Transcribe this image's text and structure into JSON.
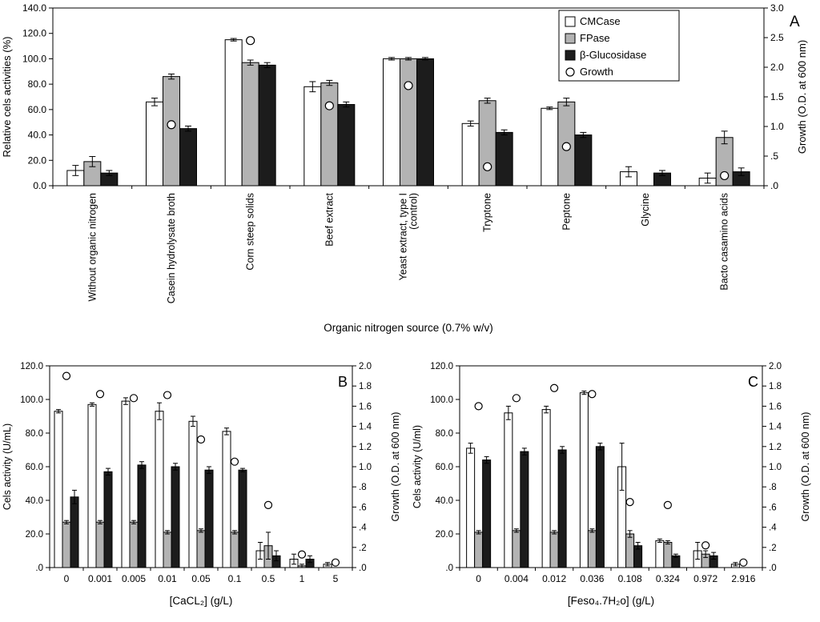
{
  "figure": {
    "background": "#ffffff"
  },
  "colors": {
    "cmcase": "#ffffff",
    "fpase": "#b3b3b3",
    "bglucosidase": "#1c1c1c",
    "stroke": "#000000"
  },
  "chart_data": [
    {
      "panel_label": "A",
      "type": "bar",
      "x_axis": {
        "label": "Organic nitrogen source (0.7% w/v)",
        "rotated_tick_labels": true
      },
      "left_axis": {
        "label": "Relative cels activities (%)",
        "min": 0,
        "max": 140,
        "ticks": [
          {
            "v": 140,
            "label": "140.0"
          },
          {
            "v": 120,
            "label": "120.0"
          },
          {
            "v": 100,
            "label": "100.0"
          },
          {
            "v": 80,
            "label": "80.0"
          },
          {
            "v": 60,
            "label": "60.0"
          },
          {
            "v": 40,
            "label": "40.0"
          },
          {
            "v": 20,
            "label": "20.0"
          },
          {
            "v": 0,
            "label": "0.0"
          }
        ]
      },
      "right_axis": {
        "label": "Growth (O.D. at 600 nm)",
        "min": 0,
        "max": 3,
        "ticks": [
          {
            "v": 3,
            "label": "3.0"
          },
          {
            "v": 2.5,
            "label": "2.5"
          },
          {
            "v": 2,
            "label": "2.0"
          },
          {
            "v": 1.5,
            "label": "1.5"
          },
          {
            "v": 1,
            "label": "1.0"
          },
          {
            "v": 0.5,
            "label": ".5"
          },
          {
            "v": 0,
            "label": ".0"
          }
        ]
      },
      "categories": [
        "Without organic nitrogen",
        "Casein hydrolysate broth",
        "Corn steep solids",
        "Beef extract",
        "Yeast extract, type I\n(control)",
        "Tryptone",
        "Peptone",
        "Glycine",
        "Bacto casamino acids"
      ],
      "series": [
        {
          "name": "CMCase",
          "color": "#ffffff",
          "values": [
            12,
            66,
            115,
            78,
            100,
            49,
            61,
            11,
            6
          ],
          "errors": [
            4,
            3,
            1,
            4,
            1,
            2,
            1,
            4,
            4
          ]
        },
        {
          "name": "FPase",
          "color": "#b3b3b3",
          "values": [
            19,
            86,
            97,
            81,
            100,
            67,
            66,
            0,
            38
          ],
          "errors": [
            4,
            2,
            2,
            2,
            1,
            2,
            3,
            0,
            5
          ]
        },
        {
          "name": "β-Glucosidase",
          "color": "#1c1c1c",
          "values": [
            10,
            45,
            95,
            64,
            100,
            42,
            40,
            10,
            11
          ],
          "errors": [
            2,
            2,
            2,
            2,
            1,
            2,
            2,
            2,
            3
          ]
        }
      ],
      "growth_series": {
        "name": "Growth",
        "marker": "open-circle",
        "values": [
          null,
          1.03,
          2.45,
          1.35,
          1.69,
          0.32,
          0.66,
          null,
          0.17
        ]
      },
      "legend": {
        "position": "top-right",
        "entries": [
          {
            "label": "CMCase",
            "swatch": "square",
            "color": "#ffffff"
          },
          {
            "label": "FPase",
            "swatch": "square",
            "color": "#b3b3b3"
          },
          {
            "label": "β-Glucosidase",
            "swatch": "square",
            "color": "#1c1c1c"
          },
          {
            "label": "Growth",
            "swatch": "circle",
            "color": "#ffffff"
          }
        ]
      }
    },
    {
      "panel_label": "B",
      "type": "bar",
      "x_axis": {
        "label": "[CaCL₂] (g/L)",
        "rotated_tick_labels": false
      },
      "left_axis": {
        "label": "Cels activity (U/mL)",
        "min": 0,
        "max": 120,
        "ticks": [
          {
            "v": 120,
            "label": "120.0"
          },
          {
            "v": 100,
            "label": "100.0"
          },
          {
            "v": 80,
            "label": "80.0"
          },
          {
            "v": 60,
            "label": "60.0"
          },
          {
            "v": 40,
            "label": "40.0"
          },
          {
            "v": 20,
            "label": "20.0"
          },
          {
            "v": 0,
            "label": ".0"
          }
        ]
      },
      "right_axis": {
        "label": "Growth (O.D. at 600 nm)",
        "min": 0,
        "max": 2,
        "ticks": [
          {
            "v": 2,
            "label": "2.0"
          },
          {
            "v": 1.8,
            "label": "1.8"
          },
          {
            "v": 1.6,
            "label": "1.6"
          },
          {
            "v": 1.4,
            "label": "1.4"
          },
          {
            "v": 1.2,
            "label": "1.2"
          },
          {
            "v": 1,
            "label": "1.0"
          },
          {
            "v": 0.8,
            "label": ".8"
          },
          {
            "v": 0.6,
            "label": ".6"
          },
          {
            "v": 0.4,
            "label": ".4"
          },
          {
            "v": 0.2,
            "label": ".2"
          },
          {
            "v": 0,
            "label": ".0"
          }
        ]
      },
      "categories": [
        "0",
        "0.001",
        "0.005",
        "0.01",
        "0.05",
        "0.1",
        "0.5",
        "1",
        "5"
      ],
      "series": [
        {
          "name": "CMCase",
          "color": "#ffffff",
          "values": [
            93,
            97,
            99,
            93,
            87,
            81,
            10,
            5,
            2
          ],
          "errors": [
            1,
            1,
            2,
            5,
            3,
            2,
            5,
            3,
            1
          ]
        },
        {
          "name": "FPase",
          "color": "#b3b3b3",
          "values": [
            27,
            27,
            27,
            21,
            22,
            21,
            13,
            1,
            0
          ],
          "errors": [
            1,
            1,
            1,
            1,
            1,
            1,
            8,
            1,
            0
          ]
        },
        {
          "name": "β-Glucosidase",
          "color": "#1c1c1c",
          "values": [
            42,
            57,
            61,
            60,
            58,
            58,
            7,
            5,
            0
          ],
          "errors": [
            4,
            2,
            2,
            2,
            2,
            1,
            3,
            2,
            0
          ]
        }
      ],
      "growth_series": {
        "name": "Growth",
        "marker": "open-circle",
        "values": [
          1.9,
          1.72,
          1.68,
          1.71,
          1.27,
          1.05,
          0.62,
          0.13,
          0.05
        ]
      }
    },
    {
      "panel_label": "C",
      "type": "bar",
      "x_axis": {
        "label": "[Feso₄.7H₂o] (g/L)",
        "rotated_tick_labels": false
      },
      "left_axis": {
        "label": "Cels activity (U/ml)",
        "min": 0,
        "max": 120,
        "ticks": [
          {
            "v": 120,
            "label": "120.0"
          },
          {
            "v": 100,
            "label": "100.0"
          },
          {
            "v": 80,
            "label": "80.0"
          },
          {
            "v": 60,
            "label": "60.0"
          },
          {
            "v": 40,
            "label": "40.0"
          },
          {
            "v": 20,
            "label": "20.0"
          },
          {
            "v": 0,
            "label": ".0"
          }
        ]
      },
      "right_axis": {
        "label": "Growth (O.D. at 600 nm)",
        "min": 0,
        "max": 2,
        "ticks": [
          {
            "v": 2,
            "label": "2.0"
          },
          {
            "v": 1.8,
            "label": "1.8"
          },
          {
            "v": 1.6,
            "label": "1.6"
          },
          {
            "v": 1.4,
            "label": "1.4"
          },
          {
            "v": 1.2,
            "label": "1.2"
          },
          {
            "v": 1,
            "label": "1.0"
          },
          {
            "v": 0.8,
            "label": ".8"
          },
          {
            "v": 0.6,
            "label": ".6"
          },
          {
            "v": 0.4,
            "label": ".4"
          },
          {
            "v": 0.2,
            "label": ".2"
          },
          {
            "v": 0,
            "label": ".0"
          }
        ]
      },
      "categories": [
        "0",
        "0.004",
        "0.012",
        "0.036",
        "0.108",
        "0.324",
        "0.972",
        "2.916"
      ],
      "series": [
        {
          "name": "CMCase",
          "color": "#ffffff",
          "values": [
            71,
            92,
            94,
            104,
            60,
            16,
            10,
            2
          ],
          "errors": [
            3,
            4,
            2,
            1,
            14,
            1,
            5,
            1
          ]
        },
        {
          "name": "FPase",
          "color": "#b3b3b3",
          "values": [
            21,
            22,
            21,
            22,
            20,
            15,
            8,
            0
          ],
          "errors": [
            1,
            1,
            1,
            1,
            2,
            1,
            2,
            0
          ]
        },
        {
          "name": "β-Glucosidase",
          "color": "#1c1c1c",
          "values": [
            64,
            69,
            70,
            72,
            13,
            7,
            7,
            0
          ],
          "errors": [
            2,
            2,
            2,
            2,
            2,
            1,
            2,
            0
          ]
        }
      ],
      "growth_series": {
        "name": "Growth",
        "marker": "open-circle",
        "values": [
          1.6,
          1.68,
          1.78,
          1.72,
          0.65,
          0.62,
          0.22,
          0.05
        ]
      }
    }
  ]
}
